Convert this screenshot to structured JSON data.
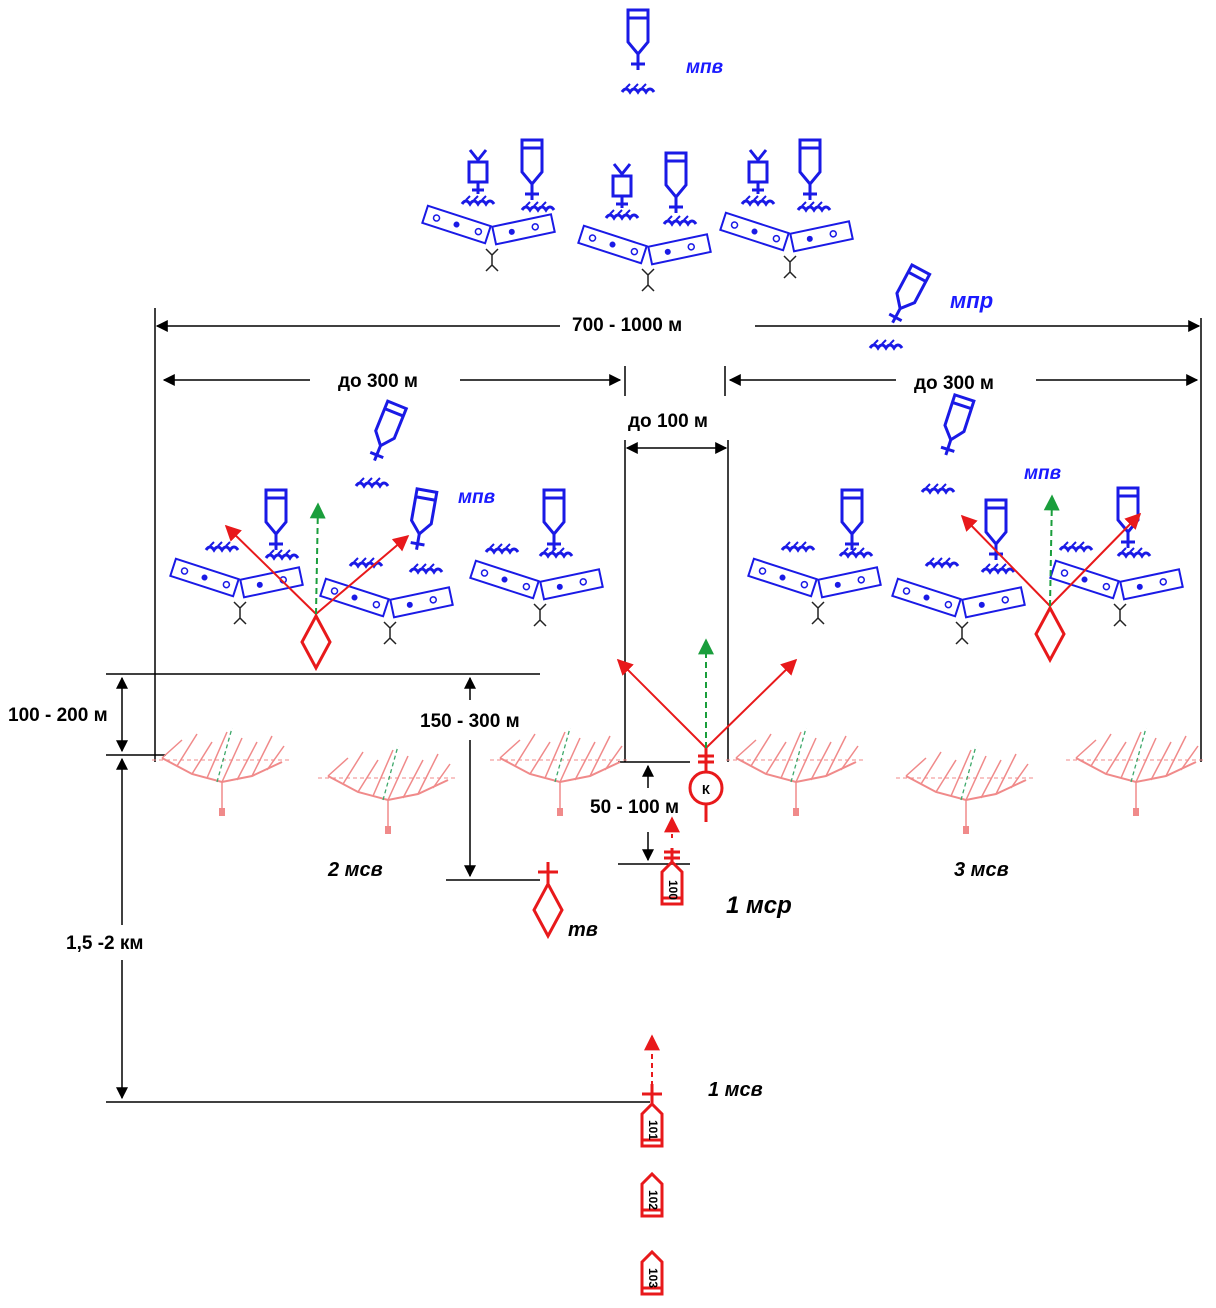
{
  "colors": {
    "friendly": "#e8191b",
    "enemy": "#1a1ae6",
    "dimension": "#000000",
    "guidance_green": "#1a9e3c",
    "trench_pink": "#f08a8a"
  },
  "dimensions": {
    "total_width": "700 -  1000 м",
    "flank_left": "до 300 м",
    "flank_right": "до 300 м",
    "center_gap": "до 100 м",
    "near_depth": "100 - 200 м",
    "tank_depth": "150 - 300 м",
    "command_depth": "50 - 100 м",
    "column_depth": "1,5 -2 км"
  },
  "enemy_labels": {
    "top": "мпв",
    "reserve": "мпр",
    "left_group": "мпв",
    "right_group": "мпв"
  },
  "friendly_labels": {
    "left_platoon": "2 мсв",
    "right_platoon": "3 мсв",
    "company": "1 мср",
    "tank": "тв",
    "first_platoon": "1 мсв",
    "command_post": "К"
  },
  "vehicles": [
    "100",
    "101",
    "102",
    "103"
  ],
  "icons": {
    "enemy_vehicle": "enemy-infantry-fighting-vehicle-icon",
    "enemy_position": "enemy-trench-position-icon",
    "friendly_tank": "friendly-tank-diamond-icon",
    "friendly_vehicle": "friendly-vehicle-icon",
    "command_post": "command-post-circle-icon",
    "assault_line": "assault-formation-icon"
  }
}
